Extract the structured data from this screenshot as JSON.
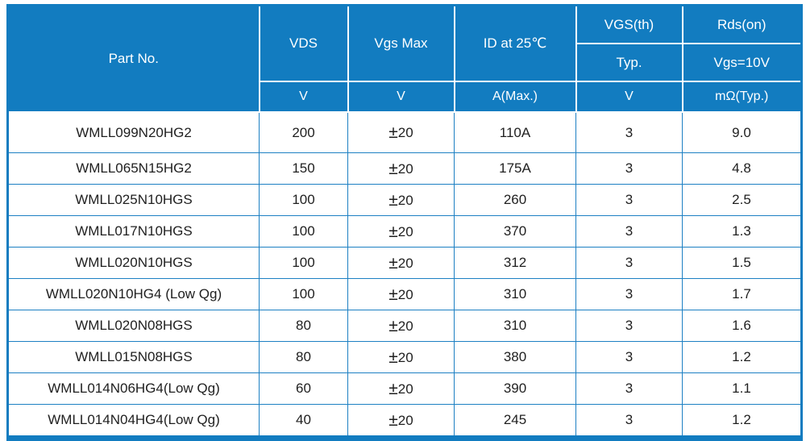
{
  "colors": {
    "header_bg": "#127cc0",
    "header_text": "#ffffff",
    "grid_line": "#1d80c3",
    "header_divider": "#ffffff",
    "data_text": "#1f1f1f",
    "page_bg": "#ffffff"
  },
  "table": {
    "header": {
      "part_no": "Part No.",
      "vds": "VDS",
      "vgs_max": "Vgs Max",
      "id_at_25c": "ID at 25℃",
      "vgs_th": "VGS(th)",
      "rds_on": "Rds(on)",
      "vgs_th_sub": "Typ.",
      "rds_on_sub": "Vgs=10V",
      "vds_unit": "V",
      "vgs_max_unit": "V",
      "id_unit": "A(Max.)",
      "vgs_th_unit": "V",
      "rds_on_unit": "mΩ(Typ.)"
    },
    "column_ids": [
      "part-no",
      "vds",
      "vgs-max",
      "id-25c",
      "vgs-th",
      "rds-on"
    ],
    "rows": [
      [
        "WMLL099N20HG2",
        "200",
        "±20",
        "110A",
        "3",
        "9.0"
      ],
      [
        "WMLL065N15HG2",
        "150",
        "±20",
        "175A",
        "3",
        "4.8"
      ],
      [
        "WMLL025N10HGS",
        "100",
        "±20",
        "260",
        "3",
        "2.5"
      ],
      [
        "WMLL017N10HGS",
        "100",
        "±20",
        "370",
        "3",
        "1.3"
      ],
      [
        "WMLL020N10HGS",
        "100",
        "±20",
        "312",
        "3",
        "1.5"
      ],
      [
        "WMLL020N10HG4 (Low Qg)",
        "100",
        "±20",
        "310",
        "3",
        "1.7"
      ],
      [
        "WMLL020N08HGS",
        "80",
        "±20",
        "310",
        "3",
        "1.6"
      ],
      [
        "WMLL015N08HGS",
        "80",
        "±20",
        "380",
        "3",
        "1.2"
      ],
      [
        "WMLL014N06HG4(Low Qg)",
        "60",
        "±20",
        "390",
        "3",
        "1.1"
      ],
      [
        "WMLL014N04HG4(Low Qg)",
        "40",
        "±20",
        "245",
        "3",
        "1.2"
      ]
    ]
  }
}
